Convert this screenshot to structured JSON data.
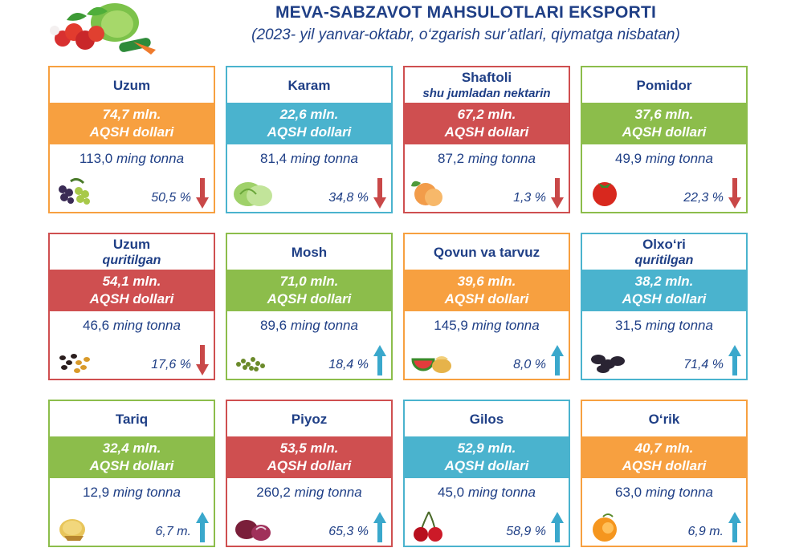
{
  "header": {
    "title": "MEVA-SABZAVOT MAHSULOTLARI EKSPORTI",
    "subtitle": "(2023- yil yanvar-oktabr, o‘zgarish sur’atlari, qiymatga nisbatan)"
  },
  "colors": {
    "orange": "#f7a040",
    "blue": "#4ab3ce",
    "red": "#cf4f50",
    "green": "#8cbd4b",
    "text": "#1f3f86"
  },
  "cards": [
    {
      "name": "Uzum",
      "sub": "",
      "value1": "74,7 mln.",
      "value2": "AQSH dollari",
      "qty": "113,0",
      "unit": "ming tonna",
      "pct": "50,5 %",
      "trend": "down",
      "icon": "grapes-icon"
    },
    {
      "name": "Karam",
      "sub": "",
      "value1": "22,6 mln.",
      "value2": "AQSH dollari",
      "qty": "81,4",
      "unit": "ming tonna",
      "pct": "34,8 %",
      "trend": "down",
      "icon": "cabbage-icon"
    },
    {
      "name": "Shaftoli",
      "sub": "shu jumladan nektarin",
      "value1": "67,2 mln.",
      "value2": "AQSH dollari",
      "qty": "87,2",
      "unit": "ming tonna",
      "pct": "1,3 %",
      "trend": "down",
      "icon": "peach-icon"
    },
    {
      "name": "Pomidor",
      "sub": "",
      "value1": "37,6 mln.",
      "value2": "AQSH dollari",
      "qty": "49,9",
      "unit": "ming tonna",
      "pct": "22,3 %",
      "trend": "down",
      "icon": "tomato-icon"
    },
    {
      "name": "Uzum",
      "sub": "quritilgan",
      "value1": "54,1 mln.",
      "value2": "AQSH dollari",
      "qty": "46,6",
      "unit": "ming tonna",
      "pct": "17,6 %",
      "trend": "down",
      "icon": "raisins-icon"
    },
    {
      "name": "Mosh",
      "sub": "",
      "value1": "71,0 mln.",
      "value2": "AQSH dollari",
      "qty": "89,6",
      "unit": "ming tonna",
      "pct": "18,4 %",
      "trend": "up",
      "icon": "mung-bean-icon"
    },
    {
      "name": "Qovun va tarvuz",
      "sub": "",
      "value1": "39,6 mln.",
      "value2": "AQSH dollari",
      "qty": "145,9",
      "unit": "ming tonna",
      "pct": "8,0 %",
      "trend": "up",
      "icon": "melon-icon"
    },
    {
      "name": "Olxo‘ri",
      "sub": "quritilgan",
      "value1": "38,2 mln.",
      "value2": "AQSH dollari",
      "qty": "31,5",
      "unit": "ming tonna",
      "pct": "71,4 %",
      "trend": "up",
      "icon": "prunes-icon"
    },
    {
      "name": "Tariq",
      "sub": "",
      "value1": "32,4 mln.",
      "value2": "AQSH dollari",
      "qty": "12,9",
      "unit": "ming tonna",
      "pct": "6,7 m.",
      "trend": "up",
      "icon": "millet-icon"
    },
    {
      "name": "Piyoz",
      "sub": "",
      "value1": "53,5 mln.",
      "value2": "AQSH dollari",
      "qty": "260,2",
      "unit": "ming tonna",
      "pct": "65,3 %",
      "trend": "up",
      "icon": "onion-icon"
    },
    {
      "name": "Gilos",
      "sub": "",
      "value1": "52,9 mln.",
      "value2": "AQSH dollari",
      "qty": "45,0",
      "unit": "ming tonna",
      "pct": "58,9 %",
      "trend": "up",
      "icon": "cherry-icon"
    },
    {
      "name": "O‘rik",
      "sub": "",
      "value1": "40,7 mln.",
      "value2": "AQSH dollari",
      "qty": "63,0",
      "unit": "ming tonna",
      "pct": "6,9 m.",
      "trend": "up",
      "icon": "apricot-icon"
    }
  ]
}
